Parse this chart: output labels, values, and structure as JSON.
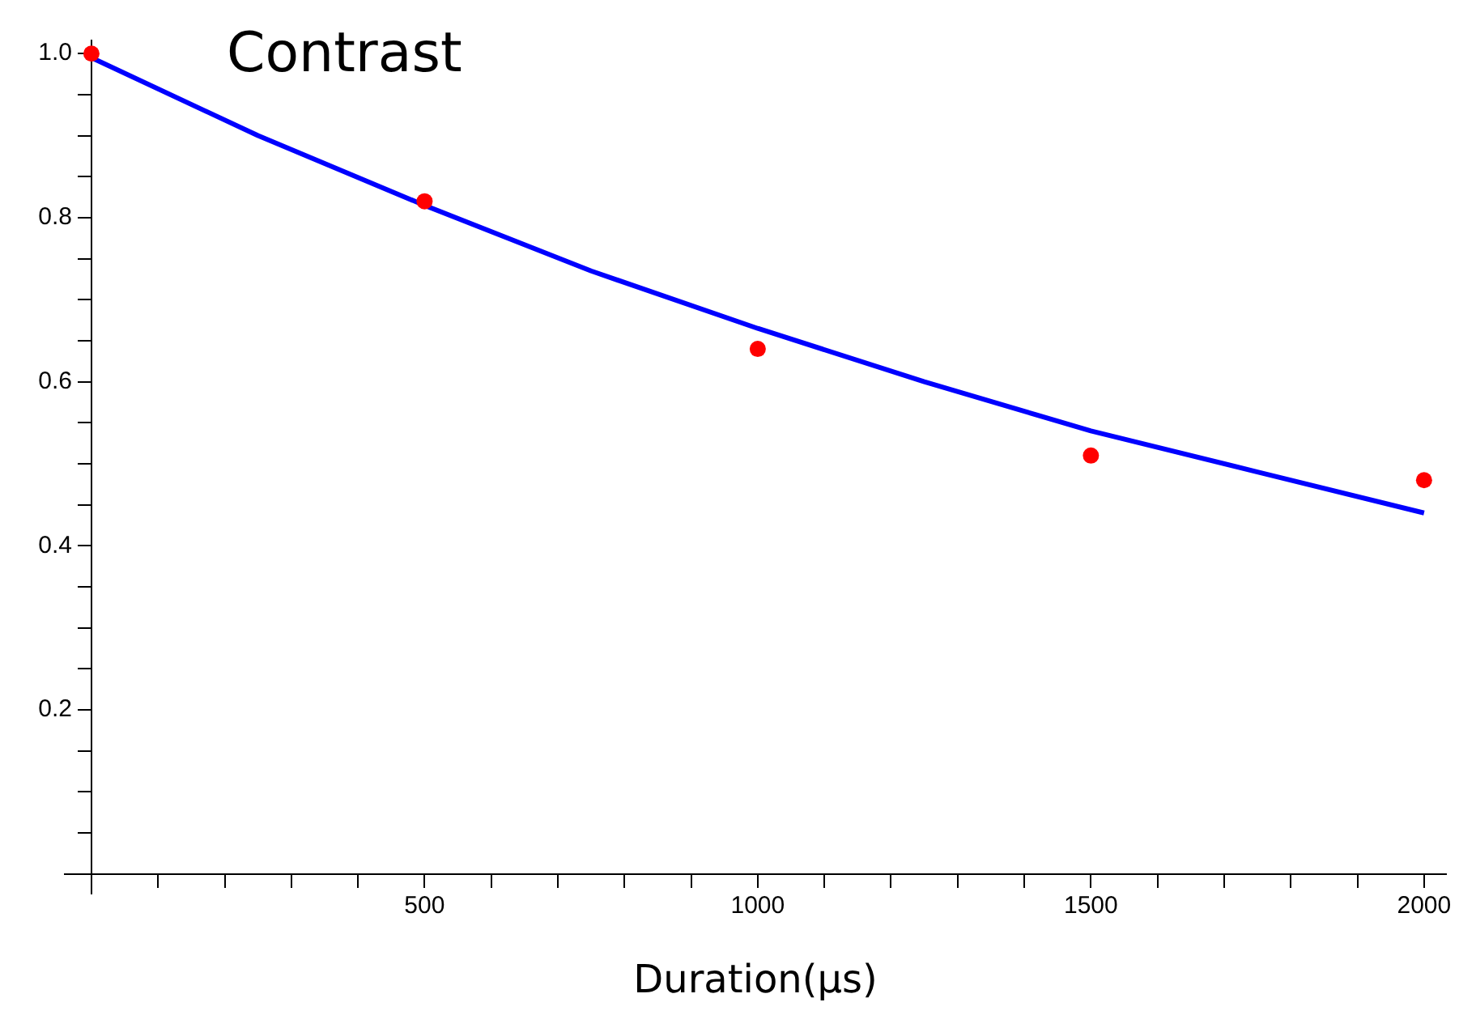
{
  "chart_data": {
    "type": "scatter",
    "title": "Contrast",
    "xlabel": "Duration(μs)",
    "xlim": [
      -40,
      2033
    ],
    "ylim": [
      -0.024,
      1.016
    ],
    "xticks": [
      {
        "value": 100,
        "label": null
      },
      {
        "value": 200,
        "label": null
      },
      {
        "value": 300,
        "label": null
      },
      {
        "value": 400,
        "label": null
      },
      500,
      {
        "value": 600,
        "label": null
      },
      {
        "value": 700,
        "label": null
      },
      {
        "value": 800,
        "label": null
      },
      {
        "value": 900,
        "label": null
      },
      1000,
      {
        "value": 1100,
        "label": null
      },
      {
        "value": 1200,
        "label": null
      },
      {
        "value": 1300,
        "label": null
      },
      {
        "value": 1400,
        "label": null
      },
      1500,
      {
        "value": 1600,
        "label": null
      },
      {
        "value": 1700,
        "label": null
      },
      {
        "value": 1800,
        "label": null
      },
      {
        "value": 1900,
        "label": null
      },
      2000
    ],
    "yticks": [
      {
        "value": 0.05,
        "label": null
      },
      {
        "value": 0.1,
        "label": null
      },
      {
        "value": 0.15,
        "label": null
      },
      0.2,
      {
        "value": 0.25,
        "label": null
      },
      {
        "value": 0.3,
        "label": null
      },
      {
        "value": 0.35,
        "label": null
      },
      0.4,
      {
        "value": 0.45,
        "label": null
      },
      {
        "value": 0.5,
        "label": null
      },
      {
        "value": 0.55,
        "label": null
      },
      0.6,
      {
        "value": 0.65,
        "label": null
      },
      {
        "value": 0.7,
        "label": null
      },
      {
        "value": 0.75,
        "label": null
      },
      0.8,
      {
        "value": 0.85,
        "label": null
      },
      {
        "value": 0.9,
        "label": null
      },
      {
        "value": 0.95,
        "label": null
      },
      {
        "value": 1,
        "label": "1.0"
      }
    ],
    "series": [
      {
        "type": "scatter",
        "color": "#ff0000",
        "marker": "circle",
        "x": [
          0,
          500,
          1000,
          1500,
          2000
        ],
        "values": [
          1.0,
          0.82,
          0.64,
          0.51,
          0.48
        ]
      },
      {
        "type": "line",
        "color": "#0000ff",
        "marker": "none",
        "x": [
          0,
          250,
          500,
          750,
          1000,
          1250,
          1500,
          1750,
          2000
        ],
        "values": [
          0.995,
          0.9,
          0.815,
          0.735,
          0.665,
          0.6,
          0.54,
          0.49,
          0.44
        ]
      }
    ]
  }
}
